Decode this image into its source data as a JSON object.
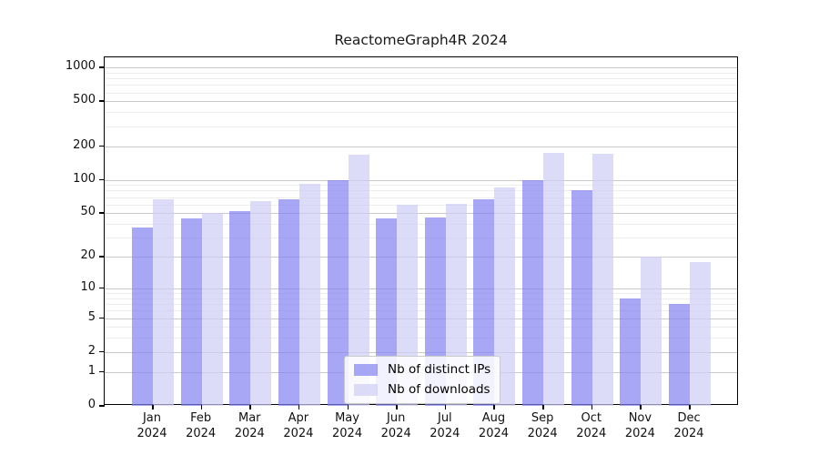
{
  "chart_data": {
    "type": "bar",
    "title": "ReactomeGraph4R 2024",
    "categories": [
      "Jan",
      "Feb",
      "Mar",
      "Apr",
      "May",
      "Jun",
      "Jul",
      "Aug",
      "Sep",
      "Oct",
      "Nov",
      "Dec"
    ],
    "x_tick_year": "2024",
    "series": [
      {
        "name": "Nb of distinct IPs",
        "color": "#8282F2B3",
        "values": [
          37,
          45,
          52,
          67,
          100,
          45,
          46,
          67,
          100,
          80,
          8,
          7
        ]
      },
      {
        "name": "Nb of downloads",
        "color": "#CDCDF5B3",
        "values": [
          67,
          50,
          64,
          92,
          167,
          60,
          61,
          85,
          175,
          170,
          20,
          18
        ]
      }
    ],
    "xlabel": "",
    "ylabel": "",
    "y_scale": "log1p",
    "ylim": [
      0,
      1230
    ],
    "y_ticks": [
      0,
      1,
      2,
      5,
      10,
      20,
      50,
      100,
      200,
      500,
      1000
    ],
    "y_minor_gridlines": [
      3,
      4,
      6,
      7,
      8,
      9,
      30,
      40,
      60,
      70,
      80,
      90,
      300,
      400,
      600,
      700,
      800,
      900
    ],
    "grid": "on",
    "legend_position": "inside lower-center",
    "colors": {
      "major_gridline": "#c9c9c9",
      "minor_gridline": "#ededed",
      "axis": "#000000",
      "text": "#1a1a1a",
      "background": "#ffffff"
    }
  }
}
